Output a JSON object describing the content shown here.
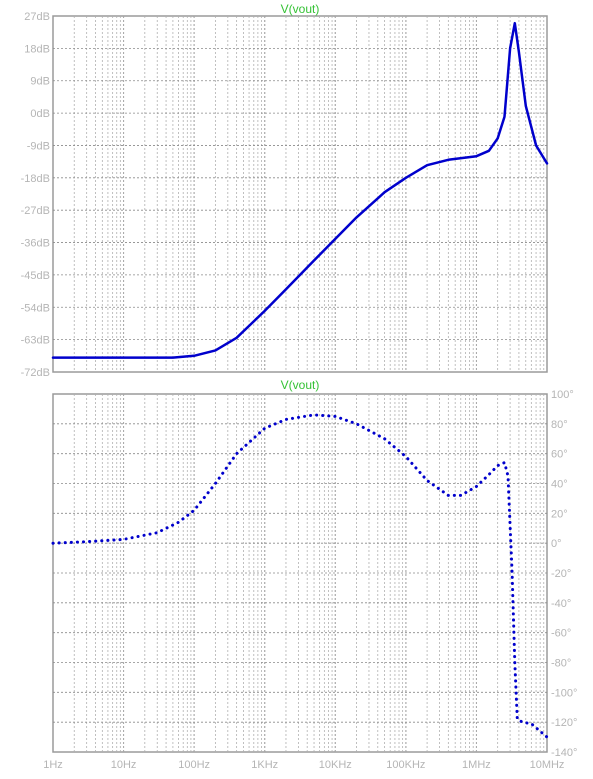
{
  "chart_data": [
    {
      "type": "line",
      "title": "V(vout)",
      "x_scale": "log",
      "xlim": [
        1,
        10000000
      ],
      "ylim": [
        -72,
        27
      ],
      "yticks": [
        27,
        18,
        9,
        0,
        -9,
        -18,
        -27,
        -36,
        -45,
        -54,
        -63,
        -72
      ],
      "ytick_labels": [
        "27dB",
        "18dB",
        "9dB",
        "0dB",
        "-9dB",
        "-18dB",
        "-27dB",
        "-36dB",
        "-45dB",
        "-54dB",
        "-63dB",
        "-72dB"
      ],
      "y_axis_side": "left",
      "grid": true,
      "series": [
        {
          "style": "solid",
          "color": "#0000cc",
          "x": [
            1,
            10,
            50,
            100,
            200,
            400,
            1000,
            2000,
            5000,
            10000,
            20000,
            50000,
            100000,
            200000,
            400000,
            1000000,
            1500000,
            2000000,
            2500000,
            3000000,
            3500000,
            4000000,
            5000000,
            7000000,
            10000000
          ],
          "y": [
            -68,
            -68,
            -68,
            -67.5,
            -66,
            -62.5,
            -55,
            -49,
            -41,
            -35,
            -29,
            -22,
            -18,
            -14.5,
            -13,
            -12,
            -10.5,
            -7,
            -1,
            18,
            25,
            17,
            2,
            -9,
            -14
          ]
        }
      ]
    },
    {
      "type": "line",
      "title": "V(vout)",
      "x_scale": "log",
      "xlim": [
        1,
        10000000
      ],
      "ylim": [
        -140,
        100
      ],
      "yticks": [
        100,
        80,
        60,
        40,
        20,
        0,
        -20,
        -40,
        -60,
        -80,
        -100,
        -120,
        -140
      ],
      "ytick_labels": [
        "100°",
        "80°",
        "60°",
        "40°",
        "20°",
        "0°",
        "-20°",
        "-40°",
        "-60°",
        "-80°",
        "-100°",
        "-120°",
        "-140°"
      ],
      "y_axis_side": "right",
      "xticks": [
        1,
        10,
        100,
        1000,
        10000,
        100000,
        1000000,
        10000000
      ],
      "xtick_labels": [
        "1Hz",
        "10Hz",
        "100Hz",
        "1KHz",
        "10KHz",
        "100KHz",
        "1MHz",
        "10MHz"
      ],
      "grid": true,
      "series": [
        {
          "style": "dotted",
          "color": "#0000cc",
          "x": [
            1,
            3,
            10,
            30,
            60,
            100,
            200,
            400,
            1000,
            2000,
            5000,
            10000,
            20000,
            50000,
            100000,
            200000,
            400000,
            600000,
            1000000,
            1500000,
            2000000,
            2500000,
            2800000,
            3200000,
            3500000,
            3800000,
            4500000,
            6000000,
            10000000
          ],
          "y": [
            0,
            1,
            2.5,
            7,
            14,
            22,
            40,
            60,
            77,
            83,
            86,
            85,
            80,
            70,
            58,
            42,
            32,
            32,
            38,
            46,
            52,
            54,
            45,
            -20,
            -80,
            -118,
            -120,
            -121,
            -130
          ]
        }
      ]
    }
  ]
}
